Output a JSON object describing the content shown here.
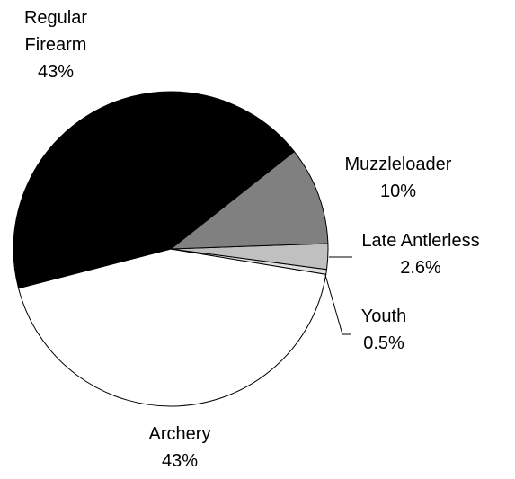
{
  "chart_data": {
    "type": "pie",
    "categories": [
      "Regular Firearm",
      "Muzzleloader",
      "Late Antlerless",
      "Youth",
      "Archery"
    ],
    "values": [
      43,
      10,
      2.6,
      0.5,
      43
    ],
    "value_labels": [
      "43%",
      "10%",
      "2.6%",
      "0.5%",
      "43%"
    ],
    "colors": [
      "#000000",
      "#808080",
      "#c0c0c0",
      "#e0e0e0",
      "#ffffff"
    ]
  }
}
